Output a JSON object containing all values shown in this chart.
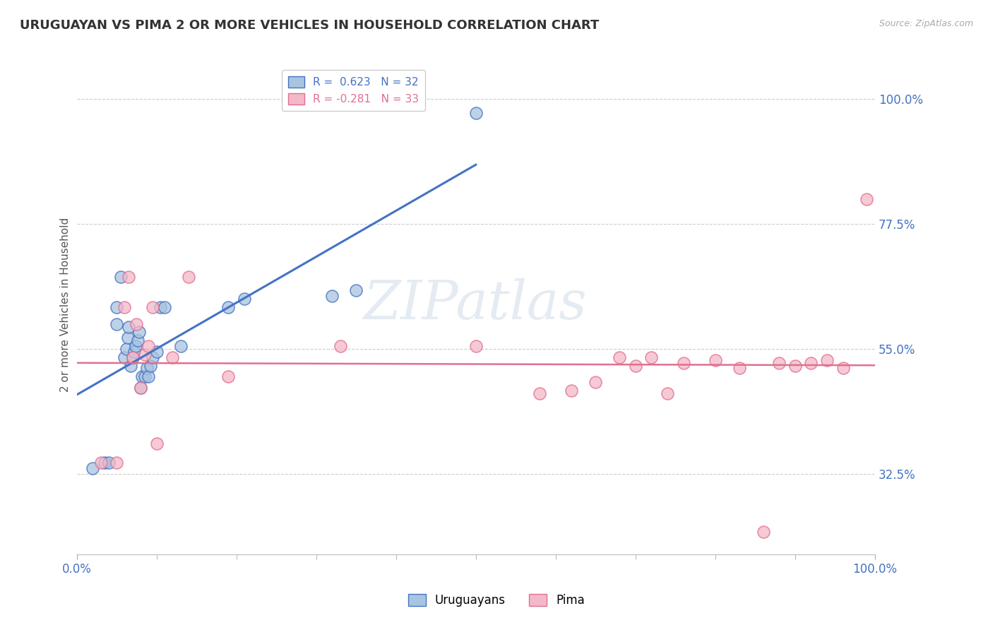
{
  "title": "URUGUAYAN VS PIMA 2 OR MORE VEHICLES IN HOUSEHOLD CORRELATION CHART",
  "source_text": "Source: ZipAtlas.com",
  "ylabel": "2 or more Vehicles in Household",
  "xlabel": "",
  "xlim": [
    0.0,
    1.0
  ],
  "ylim": [
    0.18,
    1.08
  ],
  "yticks": [
    0.325,
    0.55,
    0.775,
    1.0
  ],
  "ytick_labels": [
    "32.5%",
    "55.0%",
    "77.5%",
    "100.0%"
  ],
  "xtick_labels": [
    "0.0%",
    "100.0%"
  ],
  "xticks": [
    0.0,
    1.0
  ],
  "watermark_line1": "ZIP",
  "watermark_line2": "atlas",
  "blue_color": "#a8c4e0",
  "pink_color": "#f4b8c8",
  "blue_line_color": "#4472c4",
  "pink_line_color": "#e07090",
  "legend_blue_text": "R =  0.623   N = 32",
  "legend_pink_text": "R = -0.281   N = 33",
  "uruguayan_x": [
    0.02,
    0.035,
    0.04,
    0.05,
    0.05,
    0.055,
    0.06,
    0.062,
    0.064,
    0.065,
    0.068,
    0.07,
    0.072,
    0.074,
    0.076,
    0.078,
    0.08,
    0.082,
    0.085,
    0.088,
    0.09,
    0.092,
    0.095,
    0.1,
    0.105,
    0.11,
    0.13,
    0.19,
    0.21,
    0.32,
    0.35,
    0.5
  ],
  "uruguayan_y": [
    0.335,
    0.345,
    0.345,
    0.595,
    0.625,
    0.68,
    0.535,
    0.55,
    0.57,
    0.59,
    0.52,
    0.535,
    0.545,
    0.555,
    0.565,
    0.58,
    0.48,
    0.5,
    0.5,
    0.515,
    0.5,
    0.52,
    0.535,
    0.545,
    0.625,
    0.625,
    0.555,
    0.625,
    0.64,
    0.645,
    0.655,
    0.975
  ],
  "pima_x": [
    0.03,
    0.05,
    0.06,
    0.065,
    0.07,
    0.075,
    0.08,
    0.085,
    0.09,
    0.095,
    0.1,
    0.12,
    0.14,
    0.19,
    0.33,
    0.5,
    0.58,
    0.62,
    0.65,
    0.68,
    0.7,
    0.72,
    0.74,
    0.76,
    0.8,
    0.83,
    0.86,
    0.88,
    0.9,
    0.92,
    0.94,
    0.96,
    0.99
  ],
  "pima_y": [
    0.345,
    0.345,
    0.625,
    0.68,
    0.535,
    0.595,
    0.48,
    0.54,
    0.555,
    0.625,
    0.38,
    0.535,
    0.68,
    0.5,
    0.555,
    0.555,
    0.47,
    0.475,
    0.49,
    0.535,
    0.52,
    0.535,
    0.47,
    0.525,
    0.53,
    0.515,
    0.22,
    0.525,
    0.52,
    0.525,
    0.53,
    0.515,
    0.82
  ],
  "background_color": "#ffffff",
  "grid_color": "#cccccc",
  "label_color": "#4472c4",
  "title_color": "#333333"
}
